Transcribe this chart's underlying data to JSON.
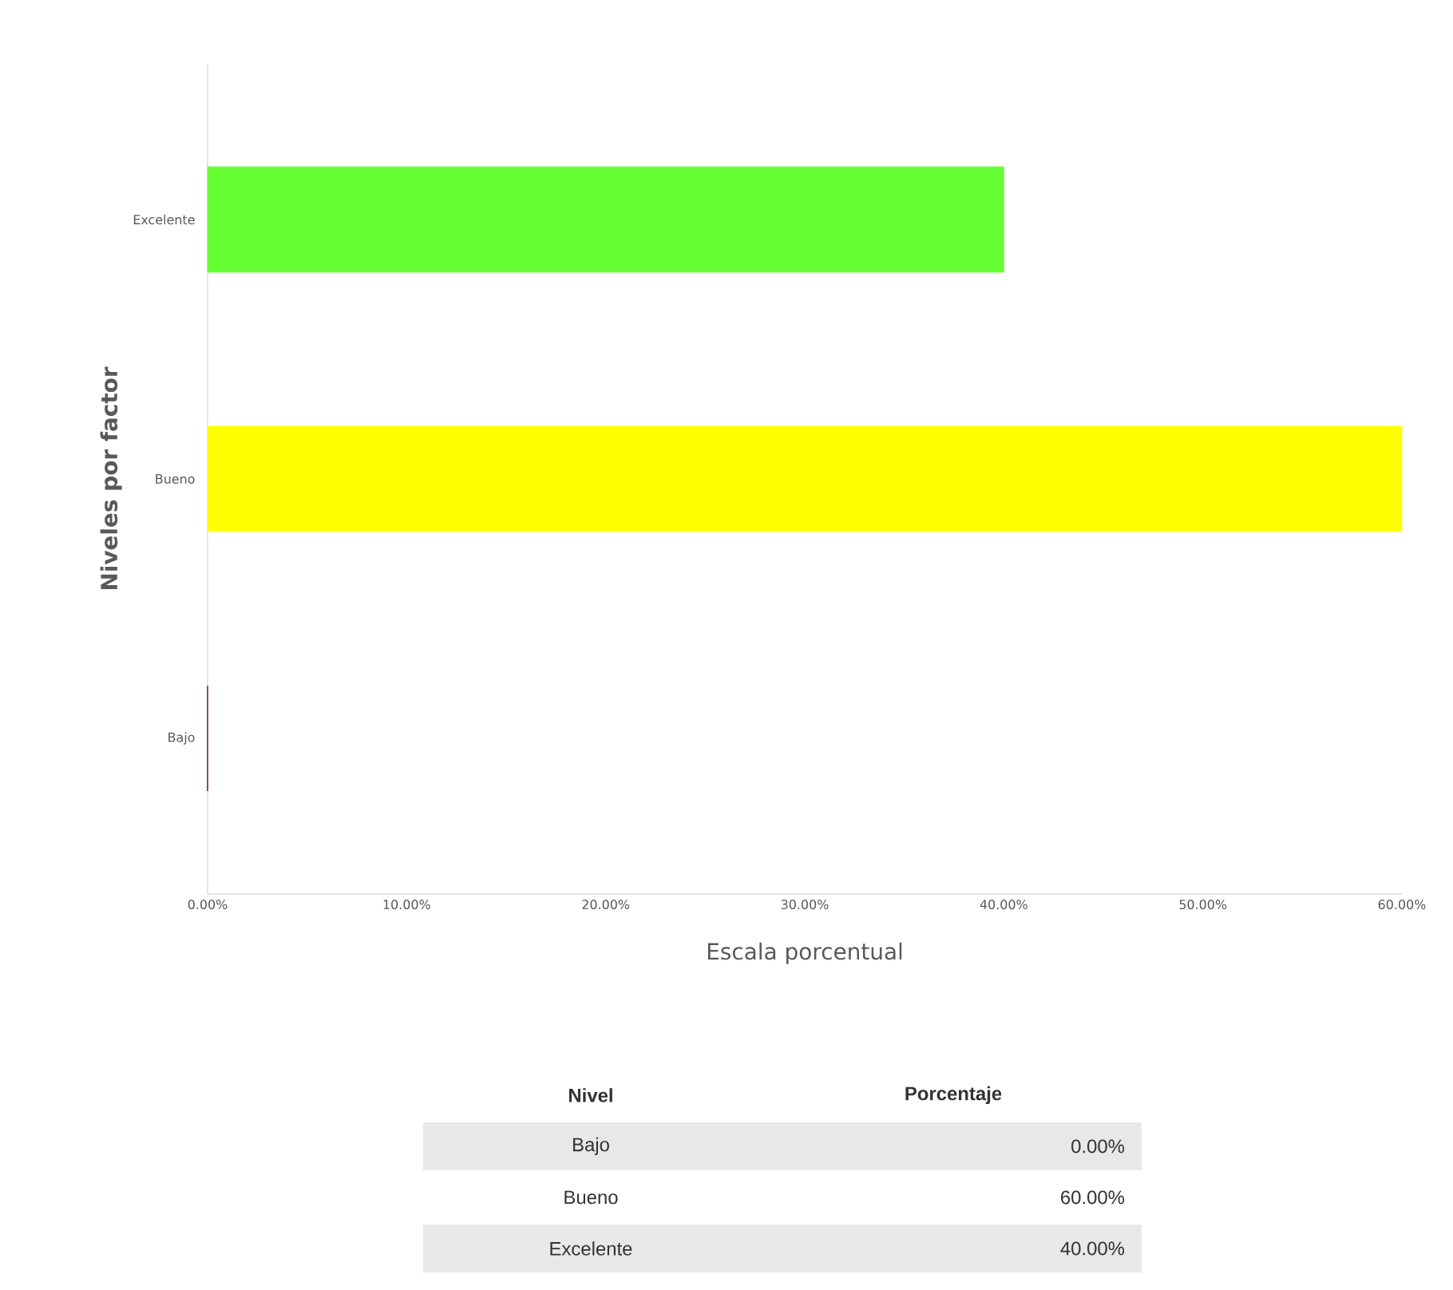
{
  "chart_data": {
    "type": "bar",
    "orientation": "horizontal",
    "xlabel": "Escala porcentual",
    "ylabel": "Niveles por factor",
    "categories": [
      "Excelente",
      "Bueno",
      "Bajo"
    ],
    "values": [
      40,
      60,
      0
    ],
    "colors": [
      "#66ff33",
      "#ffff00",
      "#5a0000"
    ],
    "xlim": [
      0,
      60
    ],
    "xticks": [
      {
        "value": 0,
        "label": "0.00%"
      },
      {
        "value": 10,
        "label": "10.00%"
      },
      {
        "value": 20,
        "label": "20.00%"
      },
      {
        "value": 30,
        "label": "30.00%"
      },
      {
        "value": 40,
        "label": "40.00%"
      },
      {
        "value": 50,
        "label": "50.00%"
      },
      {
        "value": 60,
        "label": "60.00%"
      }
    ],
    "annotations": [
      "Nivel",
      "Porcentaje",
      "0.00%",
      "60.00%",
      "40.00%"
    ]
  }
}
